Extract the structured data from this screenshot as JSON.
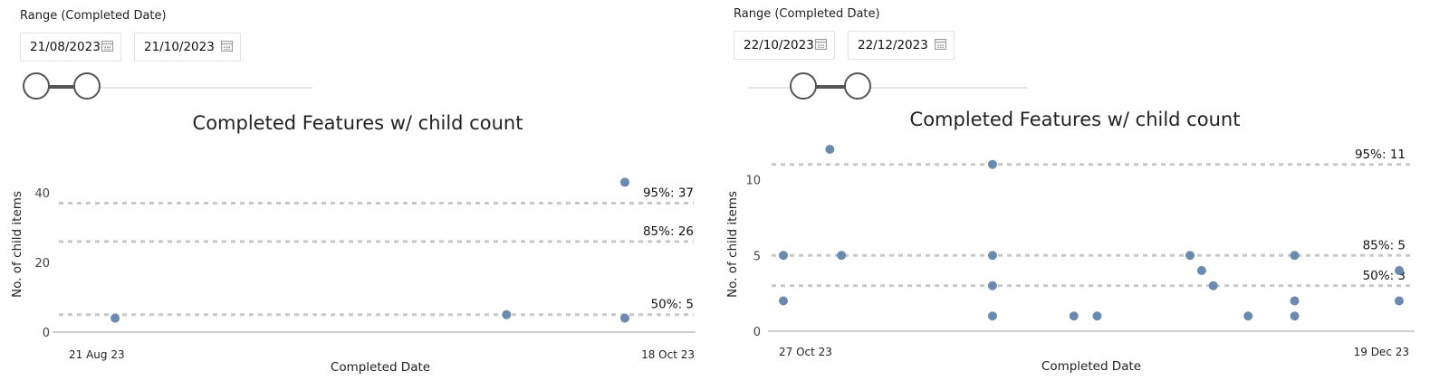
{
  "panels": [
    {
      "range_label": "Range (Completed Date)",
      "start_date": "21/08/2023",
      "end_date": "21/10/2023",
      "calendar_icon": "calendar-icon",
      "slider": {
        "start": 0,
        "end": 0.27
      }
    },
    {
      "range_label": "Range (Completed Date)",
      "start_date": "22/10/2023",
      "end_date": "22/12/2023",
      "calendar_icon": "calendar-icon",
      "slider": {
        "start": 0.15,
        "end": 0.44
      }
    }
  ],
  "chart_data": [
    {
      "type": "scatter",
      "title": "Completed Features w/ child count",
      "xlabel": "Completed Date",
      "ylabel": "No. of child items",
      "x_type": "date",
      "xlim": [
        "2023-08-21",
        "2023-10-18"
      ],
      "x_tick_labels": [
        "21 Aug 23",
        "18 Oct 23"
      ],
      "ylim": [
        0,
        47
      ],
      "y_ticks": [
        0,
        20,
        40
      ],
      "point_color": "#6a8ab0",
      "reference_lines": [
        {
          "label": "95%: 37",
          "value": 37
        },
        {
          "label": "85%: 26",
          "value": 26
        },
        {
          "label": "50%: 5",
          "value": 5
        }
      ],
      "points": [
        {
          "x": "2023-08-23",
          "y": 4
        },
        {
          "x": "2023-10-05",
          "y": 5
        },
        {
          "x": "2023-10-18",
          "y": 4
        },
        {
          "x": "2023-10-18",
          "y": 43
        }
      ]
    },
    {
      "type": "scatter",
      "title": "Completed Features w/ child count",
      "xlabel": "Completed Date",
      "ylabel": "No. of child items",
      "x_type": "date",
      "xlim": [
        "2023-10-27",
        "2023-12-19"
      ],
      "x_tick_labels": [
        "27 Oct 23",
        "19 Dec 23"
      ],
      "ylim": [
        0,
        12.3
      ],
      "y_ticks": [
        0,
        5,
        10
      ],
      "point_color": "#6a8ab0",
      "reference_lines": [
        {
          "label": "95%: 11",
          "value": 11
        },
        {
          "label": "85%: 5",
          "value": 5
        },
        {
          "label": "50%: 3",
          "value": 3
        }
      ],
      "points": [
        {
          "x": "2023-10-27",
          "y": 5
        },
        {
          "x": "2023-10-27",
          "y": 2
        },
        {
          "x": "2023-10-31",
          "y": 12
        },
        {
          "x": "2023-11-01",
          "y": 5
        },
        {
          "x": "2023-11-14",
          "y": 11
        },
        {
          "x": "2023-11-14",
          "y": 5
        },
        {
          "x": "2023-11-14",
          "y": 3
        },
        {
          "x": "2023-11-14",
          "y": 1
        },
        {
          "x": "2023-11-21",
          "y": 1
        },
        {
          "x": "2023-11-23",
          "y": 1
        },
        {
          "x": "2023-12-01",
          "y": 5
        },
        {
          "x": "2023-12-02",
          "y": 4
        },
        {
          "x": "2023-12-03",
          "y": 3
        },
        {
          "x": "2023-12-06",
          "y": 1
        },
        {
          "x": "2023-12-10",
          "y": 5
        },
        {
          "x": "2023-12-10",
          "y": 2
        },
        {
          "x": "2023-12-10",
          "y": 1
        },
        {
          "x": "2023-12-19",
          "y": 4
        },
        {
          "x": "2023-12-19",
          "y": 2
        }
      ]
    }
  ]
}
